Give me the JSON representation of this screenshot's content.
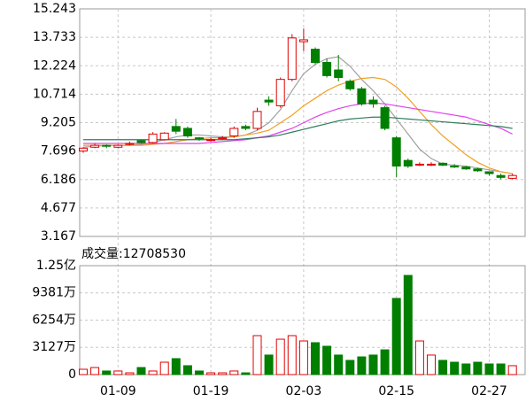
{
  "chart_data": [
    {
      "type": "candlestick",
      "categories": [
        null,
        null,
        null,
        "01-09",
        null,
        null,
        null,
        null,
        null,
        null,
        null,
        "01-19",
        null,
        null,
        null,
        null,
        null,
        null,
        null,
        "02-03",
        null,
        null,
        null,
        null,
        null,
        null,
        null,
        "02-15",
        null,
        null,
        null,
        null,
        null,
        null,
        null,
        "02-27",
        null,
        null
      ],
      "open": [
        7.7,
        7.9,
        8.0,
        7.9,
        8.05,
        8.25,
        8.15,
        8.3,
        9.0,
        8.9,
        8.4,
        8.3,
        8.35,
        8.5,
        9.0,
        8.9,
        10.4,
        10.1,
        11.5,
        13.5,
        13.1,
        12.4,
        12.0,
        11.4,
        11.0,
        10.4,
        10.0,
        8.4,
        7.2,
        6.95,
        6.95,
        7.05,
        6.9,
        6.85,
        6.75,
        6.6,
        6.4,
        6.25
      ],
      "high": [
        7.9,
        8.1,
        8.05,
        8.05,
        8.2,
        8.3,
        8.7,
        8.7,
        9.4,
        9.0,
        8.45,
        8.4,
        8.5,
        9.0,
        9.1,
        10.0,
        10.6,
        11.6,
        13.9,
        14.2,
        13.2,
        12.6,
        12.8,
        11.5,
        11.1,
        10.6,
        10.1,
        8.5,
        7.3,
        7.1,
        7.1,
        7.1,
        7.0,
        6.9,
        6.8,
        6.6,
        6.5,
        6.5
      ],
      "low": [
        7.6,
        7.85,
        7.85,
        7.85,
        8.0,
        8.1,
        8.1,
        8.25,
        8.6,
        8.4,
        8.25,
        8.2,
        8.3,
        8.4,
        8.8,
        8.8,
        10.1,
        10.0,
        11.4,
        13.0,
        12.3,
        11.6,
        11.4,
        10.9,
        10.1,
        10.0,
        8.8,
        6.3,
        6.8,
        6.9,
        6.9,
        6.9,
        6.8,
        6.7,
        6.6,
        6.4,
        6.2,
        6.2
      ],
      "close": [
        7.85,
        8.0,
        7.95,
        8.0,
        8.1,
        8.15,
        8.6,
        8.65,
        8.75,
        8.5,
        8.35,
        8.3,
        8.4,
        8.9,
        8.9,
        9.8,
        10.3,
        11.5,
        13.7,
        13.6,
        12.4,
        11.7,
        11.6,
        11.0,
        10.2,
        10.2,
        8.9,
        6.9,
        6.9,
        7.0,
        7.0,
        6.95,
        6.85,
        6.75,
        6.65,
        6.5,
        6.3,
        6.4
      ],
      "up_color": "#e00000",
      "down_color": "#007f00",
      "series": [
        {
          "color": "#a0a0a0",
          "values": [
            7.9,
            7.95,
            8.0,
            8.0,
            8.0,
            8.05,
            8.15,
            8.3,
            8.45,
            8.55,
            8.55,
            8.5,
            8.45,
            8.45,
            8.55,
            8.8,
            9.2,
            9.9,
            10.9,
            11.8,
            12.3,
            12.6,
            12.7,
            12.2,
            11.5,
            10.9,
            10.2,
            9.4,
            8.6,
            7.8,
            7.3,
            7.0,
            6.95,
            6.9,
            6.8,
            6.7,
            6.6,
            6.5
          ]
        },
        {
          "color": "#f0a020",
          "values": [
            8.0,
            8.0,
            8.0,
            8.0,
            8.0,
            8.0,
            8.05,
            8.1,
            8.2,
            8.3,
            8.35,
            8.4,
            8.4,
            8.45,
            8.55,
            8.65,
            8.8,
            9.2,
            9.6,
            10.1,
            10.5,
            10.9,
            11.2,
            11.4,
            11.55,
            11.6,
            11.5,
            11.1,
            10.5,
            9.8,
            9.1,
            8.5,
            8.0,
            7.5,
            7.1,
            6.8,
            6.6,
            6.5
          ]
        },
        {
          "color": "#e040f0",
          "values": [
            8.1,
            8.1,
            8.1,
            8.1,
            8.1,
            8.1,
            8.1,
            8.1,
            8.1,
            8.1,
            8.1,
            8.15,
            8.2,
            8.25,
            8.3,
            8.4,
            8.5,
            8.7,
            8.9,
            9.2,
            9.5,
            9.75,
            9.95,
            10.1,
            10.2,
            10.25,
            10.2,
            10.1,
            10.0,
            9.9,
            9.8,
            9.7,
            9.6,
            9.5,
            9.3,
            9.1,
            8.9,
            8.6
          ]
        },
        {
          "color": "#2e7d5b",
          "values": [
            8.3,
            8.3,
            8.3,
            8.3,
            8.3,
            8.3,
            8.3,
            8.3,
            8.3,
            8.3,
            8.3,
            8.3,
            8.3,
            8.3,
            8.35,
            8.4,
            8.45,
            8.55,
            8.7,
            8.85,
            9.0,
            9.15,
            9.3,
            9.4,
            9.45,
            9.5,
            9.5,
            9.45,
            9.4,
            9.35,
            9.3,
            9.25,
            9.2,
            9.15,
            9.1,
            9.05,
            9.0,
            8.9
          ]
        }
      ],
      "ylim": [
        3.167,
        15.243
      ],
      "yticks": [
        15.243,
        13.733,
        12.224,
        10.714,
        9.205,
        7.696,
        6.186,
        4.677,
        3.167
      ],
      "grid": true
    },
    {
      "type": "bar",
      "title": "成交量:12708530",
      "values": [
        6100000,
        8100000,
        4100000,
        4100000,
        2000000,
        8100000,
        4100000,
        14200000,
        18300000,
        10200000,
        4100000,
        2000000,
        2000000,
        4100000,
        2000000,
        44700000,
        22400000,
        40600000,
        44700000,
        38600000,
        36600000,
        32500000,
        22400000,
        16300000,
        20300000,
        22400000,
        28400000,
        87400000,
        113800000,
        38600000,
        22400000,
        16300000,
        14200000,
        12200000,
        14200000,
        12200000,
        12200000,
        10200000
      ],
      "ylim": [
        0,
        125000000
      ],
      "yticks": [
        0,
        {
          "value": 31270000,
          "label": "3127万"
        },
        {
          "value": 62540000,
          "label": "6254万"
        },
        {
          "value": 93810000,
          "label": "9381万"
        },
        {
          "value": 125000000,
          "label": "1.25亿"
        }
      ],
      "grid": true
    }
  ]
}
